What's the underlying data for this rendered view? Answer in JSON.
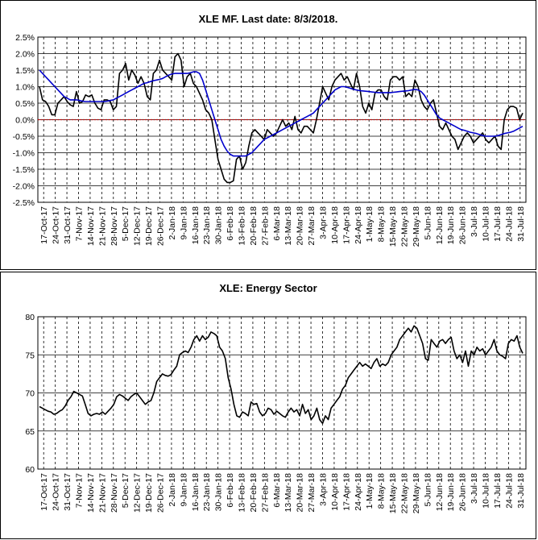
{
  "chart_data": [
    {
      "type": "line",
      "title": "XLE MF. Last date: 8/3/2018.",
      "ylim": [
        -2.5,
        2.5
      ],
      "y_ticks": [
        "2.5%",
        "2.0%",
        "1.5%",
        "1.0%",
        "0.5%",
        "0.0%",
        "-0.5%",
        "-1.0%",
        "-1.5%",
        "-2.0%",
        "-2.5%"
      ],
      "y_tick_values": [
        2.5,
        2.0,
        1.5,
        1.0,
        0.5,
        0.0,
        -0.5,
        -1.0,
        -1.5,
        -2.0,
        -2.5
      ],
      "x_ticks": [
        "17-Oct-17",
        "24-Oct-17",
        "31-Oct-17",
        "7-Nov-17",
        "14-Nov-17",
        "21-Nov-17",
        "28-Nov-17",
        "5-Dec-17",
        "12-Dec-17",
        "19-Dec-17",
        "26-Dec-17",
        "2-Jan-18",
        "9-Jan-18",
        "16-Jan-18",
        "23-Jan-18",
        "30-Jan-18",
        "6-Feb-18",
        "13-Feb-18",
        "20-Feb-18",
        "27-Feb-18",
        "6-Mar-18",
        "13-Mar-18",
        "20-Mar-18",
        "27-Mar-18",
        "3-Apr-18",
        "10-Apr-18",
        "17-Apr-18",
        "24-Apr-18",
        "1-May-18",
        "8-May-18",
        "15-May-18",
        "22-May-18",
        "29-May-18",
        "5-Jun-18",
        "12-Jun-18",
        "19-Jun-18",
        "26-Jun-18",
        "3-Jul-18",
        "10-Jul-18",
        "17-Jul-18",
        "24-Jul-18",
        "31-Jul-18"
      ],
      "grid": true,
      "reference_line": 0.0,
      "colors": {
        "mf": "#000000",
        "ma": "#0000cc",
        "zero": "#cc0000"
      },
      "series": [
        {
          "values": [
            1.0,
            0.6,
            0.55,
            0.4,
            0.15,
            0.15,
            0.5,
            0.6,
            0.7,
            0.55,
            0.45,
            0.4,
            0.85,
            0.5,
            0.55,
            0.75,
            0.7,
            0.75,
            0.5,
            0.35,
            0.3,
            0.6,
            0.6,
            0.55,
            0.3,
            0.4,
            1.4,
            1.5,
            1.7,
            1.2,
            1.5,
            1.35,
            1.1,
            1.3,
            1.1,
            0.7,
            0.6,
            1.4,
            1.5,
            1.8,
            1.5,
            1.4,
            1.3,
            1.2,
            1.9,
            2.0,
            1.8,
            1.0,
            1.3,
            1.4,
            1.1,
            1.0,
            0.8,
            0.6,
            0.3,
            0.2,
            0.0,
            -0.6,
            -1.2,
            -1.5,
            -1.8,
            -1.9,
            -1.9,
            -1.85,
            -1.2,
            -1.1,
            -1.5,
            -1.3,
            -0.8,
            -0.4,
            -0.3,
            -0.4,
            -0.5,
            -0.6,
            -0.3,
            -0.4,
            -0.5,
            -0.4,
            -0.2,
            0.0,
            -0.2,
            -0.1,
            -0.3,
            0.1,
            -0.3,
            -0.4,
            -0.2,
            -0.2,
            -0.3,
            -0.4,
            0.0,
            0.5,
            1.0,
            0.8,
            0.6,
            1.0,
            1.2,
            1.3,
            1.4,
            1.2,
            1.3,
            1.1,
            0.9,
            1.4,
            1.0,
            0.4,
            0.2,
            0.5,
            0.3,
            0.8,
            0.9,
            0.9,
            0.7,
            0.6,
            1.2,
            1.3,
            1.3,
            1.2,
            1.3,
            0.7,
            0.8,
            0.7,
            1.2,
            1.0,
            0.6,
            0.4,
            0.3,
            0.5,
            0.6,
            0.2,
            -0.2,
            -0.3,
            -0.1,
            -0.3,
            -0.5,
            -0.6,
            -0.9,
            -0.7,
            -0.5,
            -0.4,
            -0.5,
            -0.7,
            -0.6,
            -0.5,
            -0.4,
            -0.6,
            -0.7,
            -0.6,
            -0.5,
            -0.8,
            -0.9,
            0.0,
            0.3,
            0.4,
            0.4,
            0.35,
            0.0,
            0.2
          ]
        },
        {
          "values": [
            1.5,
            1.4,
            1.3,
            1.2,
            1.1,
            1.0,
            0.9,
            0.8,
            0.7,
            0.65,
            0.6,
            0.6,
            0.6,
            0.58,
            0.56,
            0.55,
            0.55,
            0.55,
            0.55,
            0.55,
            0.55,
            0.55,
            0.56,
            0.58,
            0.6,
            0.65,
            0.7,
            0.75,
            0.8,
            0.85,
            0.9,
            0.95,
            1.0,
            1.05,
            1.1,
            1.12,
            1.15,
            1.18,
            1.2,
            1.22,
            1.25,
            1.3,
            1.35,
            1.38,
            1.4,
            1.4,
            1.4,
            1.4,
            1.4,
            1.42,
            1.45,
            1.45,
            1.4,
            1.2,
            0.9,
            0.6,
            0.3,
            0.0,
            -0.3,
            -0.6,
            -0.8,
            -0.95,
            -1.05,
            -1.1,
            -1.1,
            -1.1,
            -1.1,
            -1.1,
            -1.05,
            -1.0,
            -0.9,
            -0.8,
            -0.7,
            -0.6,
            -0.55,
            -0.5,
            -0.45,
            -0.4,
            -0.35,
            -0.3,
            -0.25,
            -0.2,
            -0.15,
            -0.1,
            -0.05,
            0.0,
            0.05,
            0.1,
            0.15,
            0.2,
            0.3,
            0.4,
            0.5,
            0.6,
            0.7,
            0.8,
            0.9,
            0.95,
            1.0,
            1.0,
            0.98,
            0.95,
            0.92,
            0.9,
            0.88,
            0.87,
            0.86,
            0.85,
            0.84,
            0.83,
            0.82,
            0.82,
            0.82,
            0.82,
            0.82,
            0.83,
            0.84,
            0.85,
            0.86,
            0.87,
            0.88,
            0.9,
            0.92,
            0.9,
            0.85,
            0.75,
            0.6,
            0.45,
            0.3,
            0.15,
            0.05,
            0.0,
            -0.05,
            -0.1,
            -0.15,
            -0.2,
            -0.25,
            -0.3,
            -0.32,
            -0.35,
            -0.38,
            -0.4,
            -0.42,
            -0.45,
            -0.48,
            -0.5,
            -0.5,
            -0.5,
            -0.5,
            -0.48,
            -0.45,
            -0.42,
            -0.4,
            -0.38,
            -0.35,
            -0.3,
            -0.25,
            -0.2
          ]
        }
      ]
    },
    {
      "type": "line",
      "title": "XLE: Energy Sector",
      "ylim": [
        60,
        80
      ],
      "y_ticks": [
        "80",
        "75",
        "70",
        "65",
        "60"
      ],
      "y_tick_values": [
        80,
        75,
        70,
        65,
        60
      ],
      "x_ticks": [
        "17-Oct-17",
        "24-Oct-17",
        "31-Oct-17",
        "7-Nov-17",
        "14-Nov-17",
        "21-Nov-17",
        "28-Nov-17",
        "5-Dec-17",
        "12-Dec-17",
        "19-Dec-17",
        "26-Dec-17",
        "2-Jan-18",
        "9-Jan-18",
        "16-Jan-18",
        "23-Jan-18",
        "30-Jan-18",
        "6-Feb-18",
        "13-Feb-18",
        "20-Feb-18",
        "27-Feb-18",
        "6-Mar-18",
        "13-Mar-18",
        "20-Mar-18",
        "27-Mar-18",
        "3-Apr-18",
        "10-Apr-18",
        "17-Apr-18",
        "24-Apr-18",
        "1-May-18",
        "8-May-18",
        "15-May-18",
        "22-May-18",
        "29-May-18",
        "5-Jun-18",
        "12-Jun-18",
        "19-Jun-18",
        "26-Jun-18",
        "3-Jul-18",
        "10-Jul-18",
        "17-Jul-18",
        "24-Jul-18",
        "31-Jul-18"
      ],
      "grid": true,
      "colors": {
        "price": "#000000"
      },
      "series": [
        {
          "values": [
            68.2,
            68.0,
            67.8,
            67.6,
            67.5,
            67.2,
            67.3,
            67.6,
            67.8,
            68.3,
            69.0,
            69.5,
            70.2,
            70.0,
            69.8,
            69.6,
            68.5,
            67.3,
            67.0,
            67.2,
            67.3,
            67.2,
            67.5,
            67.2,
            67.6,
            68.0,
            68.5,
            69.5,
            69.8,
            69.6,
            69.3,
            69.0,
            69.5,
            69.8,
            70.0,
            69.5,
            69.0,
            68.5,
            68.8,
            69.0,
            70.0,
            71.5,
            72.0,
            72.5,
            72.3,
            72.2,
            72.4,
            73.0,
            73.5,
            75.0,
            75.3,
            75.5,
            75.3,
            76.0,
            77.0,
            77.5,
            76.8,
            77.5,
            77.0,
            77.3,
            78.0,
            77.8,
            77.5,
            76.0,
            75.5,
            74.5,
            72.0,
            70.5,
            68.5,
            67.0,
            66.8,
            67.5,
            67.3,
            67.0,
            68.8,
            68.5,
            68.6,
            67.5,
            67.0,
            67.3,
            68.0,
            67.8,
            67.2,
            67.6,
            67.3,
            67.0,
            66.8,
            67.5,
            68.0,
            67.5,
            67.8,
            67.0,
            68.5,
            67.3,
            67.8,
            66.5,
            67.0,
            68.0,
            66.5,
            66.0,
            67.0,
            66.5,
            68.0,
            68.5,
            69.0,
            69.5,
            70.5,
            71.0,
            72.0,
            72.5,
            73.0,
            73.5,
            74.0,
            73.5,
            73.8,
            73.5,
            73.2,
            74.0,
            74.5,
            73.5,
            73.8,
            73.6,
            74.0,
            75.0,
            75.5,
            76.0,
            77.0,
            77.5,
            78.0,
            78.5,
            78.0,
            78.8,
            78.5,
            77.5,
            76.5,
            74.5,
            74.3,
            77.0,
            76.5,
            76.0,
            76.8,
            77.0,
            76.5,
            77.0,
            77.3,
            75.5,
            74.5,
            75.0,
            74.0,
            75.5,
            73.5,
            75.5,
            75.0,
            76.0,
            75.5,
            75.8,
            75.0,
            75.5,
            76.0,
            77.0,
            75.5,
            75.0,
            74.8,
            74.5,
            76.5,
            77.0,
            76.8,
            77.5,
            76.0,
            75.2
          ]
        }
      ]
    }
  ]
}
